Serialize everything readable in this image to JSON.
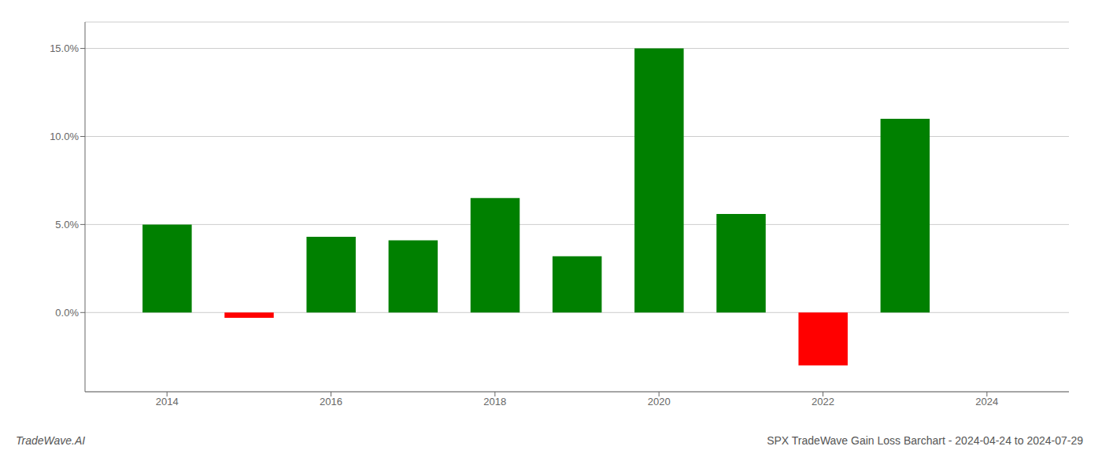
{
  "chart_data": {
    "type": "bar",
    "title": "SPX TradeWave Gain Loss Barchart - 2024-04-24 to 2024-07-29",
    "annotations": [
      "TradeWave.AI"
    ],
    "x": [
      2014,
      2015,
      2016,
      2017,
      2018,
      2019,
      2020,
      2021,
      2022,
      2023
    ],
    "values": [
      0.05,
      -0.003,
      0.043,
      0.041,
      0.065,
      0.032,
      0.15,
      0.056,
      -0.03,
      0.11
    ],
    "colors": [
      "#008000",
      "#ff0000",
      "#008000",
      "#008000",
      "#008000",
      "#008000",
      "#008000",
      "#008000",
      "#ff0000",
      "#008000"
    ],
    "xlim": [
      2013.0,
      2025.0
    ],
    "ylim": [
      -0.045,
      0.165
    ],
    "xticks": [
      2014,
      2016,
      2018,
      2020,
      2022,
      2024
    ],
    "yticks": [
      {
        "value": 0.0,
        "label": "0.0%"
      },
      {
        "value": 0.05,
        "label": "5.0%"
      },
      {
        "value": 0.1,
        "label": "10.0%"
      },
      {
        "value": 0.15,
        "label": "15.0%"
      }
    ],
    "grid": true
  }
}
